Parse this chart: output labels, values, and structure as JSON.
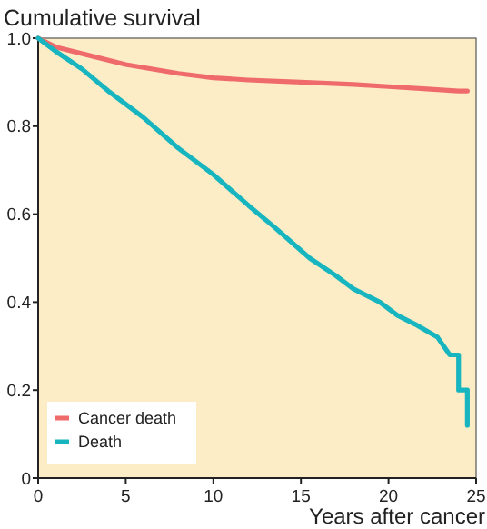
{
  "chart_data": {
    "type": "line",
    "title": "Cumulative survival",
    "xlabel": "Years after cancer",
    "xlim": [
      0,
      25
    ],
    "xticks": [
      0,
      5,
      10,
      15,
      20,
      25
    ],
    "ylim": [
      0,
      1
    ],
    "yticks": [
      0,
      {
        "value": 0.2,
        "label": "0.2"
      },
      {
        "value": 0.4,
        "label": "0.4"
      },
      {
        "value": 0.6,
        "label": "0.6"
      },
      {
        "value": 0.8,
        "label": "0.8"
      },
      {
        "value": 1,
        "label": "1.0"
      }
    ],
    "legend": "bottom left",
    "grid": false,
    "series": [
      {
        "name": "Cancer death",
        "color": "#ef6b6b",
        "x": [
          0,
          1,
          3,
          5,
          8,
          10,
          12,
          15,
          18,
          20,
          22,
          24,
          24.5
        ],
        "values": [
          1,
          0.98,
          0.96,
          0.94,
          0.92,
          0.91,
          0.905,
          0.9,
          0.895,
          0.89,
          0.885,
          0.88,
          0.88
        ]
      },
      {
        "name": "Death",
        "color": "#17b5bf",
        "x": [
          0,
          1,
          2.5,
          4,
          6,
          8,
          10,
          12,
          13.5,
          15.5,
          17,
          18,
          19.5,
          20.5,
          21.5,
          22.8,
          23.5,
          24,
          24,
          24.5,
          24.5
        ],
        "values": [
          1,
          0.97,
          0.93,
          0.88,
          0.82,
          0.75,
          0.69,
          0.62,
          0.57,
          0.5,
          0.46,
          0.43,
          0.4,
          0.37,
          0.35,
          0.32,
          0.28,
          0.28,
          0.2,
          0.2,
          0.12
        ]
      }
    ]
  }
}
